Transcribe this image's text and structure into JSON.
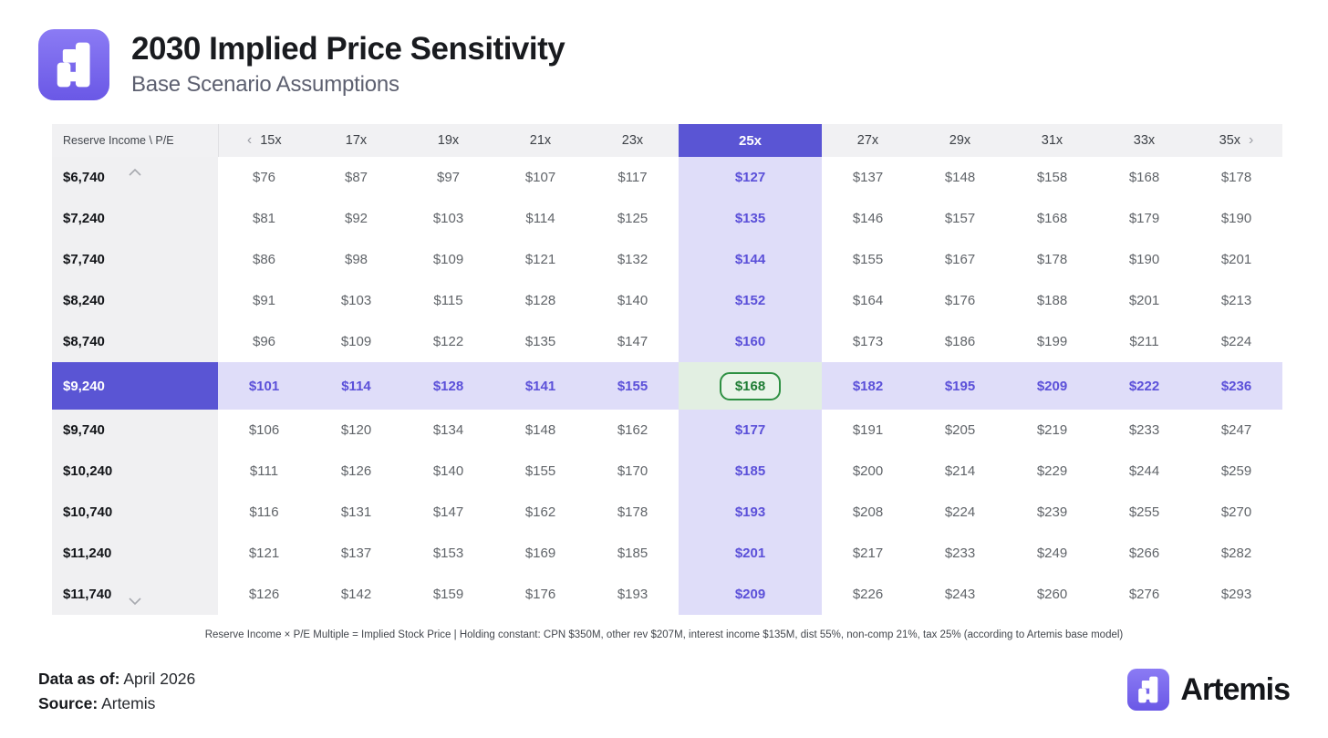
{
  "header": {
    "title": "2030 Implied Price Sensitivity",
    "subtitle": "Base Scenario Assumptions"
  },
  "table": {
    "corner_label": "Reserve Income \\ P/E",
    "highlighted_column": "25x",
    "highlighted_row": "$9,240",
    "selected_cell": {
      "row": "$9,240",
      "column": "25x",
      "value": "$168"
    },
    "footnote": "Reserve Income × P/E Multiple = Implied Stock Price | Holding constant: CPN $350M, other rev $207M, interest income $135M, dist 55%, non-comp 21%, tax 25% (according to Artemis base model)"
  },
  "chart_data": {
    "type": "table",
    "title": "2030 Implied Price Sensitivity",
    "subtitle": "Base Scenario Assumptions",
    "x_axis_label": "P/E Multiple",
    "y_axis_label": "Reserve Income",
    "value_prefix": "$",
    "columns": [
      "15x",
      "17x",
      "19x",
      "21x",
      "23x",
      "25x",
      "27x",
      "29x",
      "31x",
      "33x",
      "35x"
    ],
    "rows": [
      "$6,740",
      "$7,240",
      "$7,740",
      "$8,240",
      "$8,740",
      "$9,240",
      "$9,740",
      "$10,240",
      "$10,740",
      "$11,240",
      "$11,740"
    ],
    "values": [
      [
        76,
        87,
        97,
        107,
        117,
        127,
        137,
        148,
        158,
        168,
        178
      ],
      [
        81,
        92,
        103,
        114,
        125,
        135,
        146,
        157,
        168,
        179,
        190
      ],
      [
        86,
        98,
        109,
        121,
        132,
        144,
        155,
        167,
        178,
        190,
        201
      ],
      [
        91,
        103,
        115,
        128,
        140,
        152,
        164,
        176,
        188,
        201,
        213
      ],
      [
        96,
        109,
        122,
        135,
        147,
        160,
        173,
        186,
        199,
        211,
        224
      ],
      [
        101,
        114,
        128,
        141,
        155,
        168,
        182,
        195,
        209,
        222,
        236
      ],
      [
        106,
        120,
        134,
        148,
        162,
        177,
        191,
        205,
        219,
        233,
        247
      ],
      [
        111,
        126,
        140,
        155,
        170,
        185,
        200,
        214,
        229,
        244,
        259
      ],
      [
        116,
        131,
        147,
        162,
        178,
        193,
        208,
        224,
        239,
        255,
        270
      ],
      [
        121,
        137,
        153,
        169,
        185,
        201,
        217,
        233,
        249,
        266,
        282
      ],
      [
        126,
        142,
        159,
        176,
        193,
        209,
        226,
        243,
        260,
        276,
        293
      ]
    ]
  },
  "icons": {
    "chevron_left": "‹",
    "chevron_right": "›"
  },
  "footer": {
    "data_as_of_label": "Data as of:",
    "data_as_of_value": "April 2026",
    "source_label": "Source:",
    "source_value": "Artemis",
    "wordmark": "Artemis"
  },
  "colors": {
    "accent_purple": "#5a55d4",
    "light_purple": "#dfddf9",
    "purple_text": "#5b50d9",
    "green_border": "#2e9043",
    "green_bg": "#e2efe2",
    "green_text": "#1e7c34",
    "header_gray": "#f1f1f3"
  }
}
